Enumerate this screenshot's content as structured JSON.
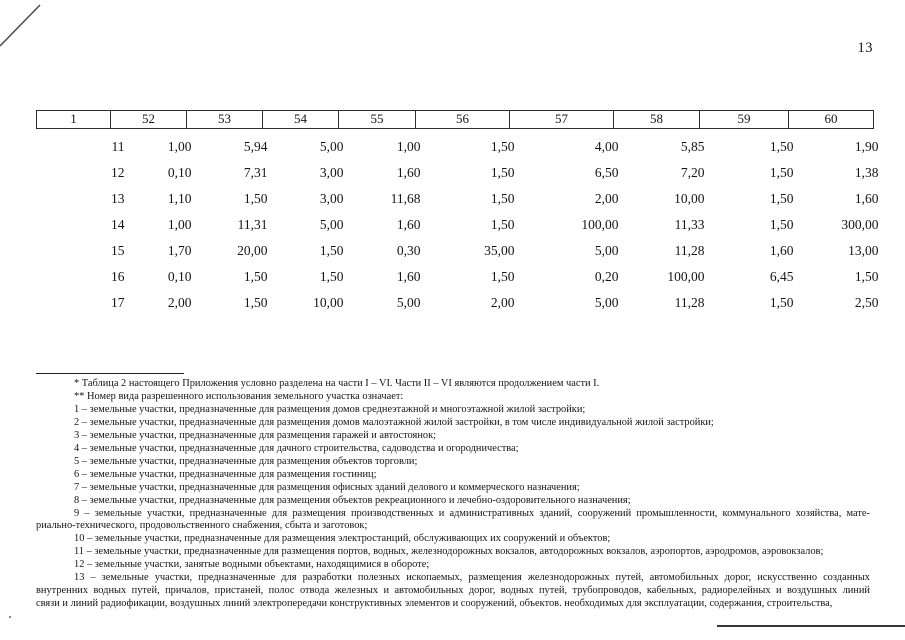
{
  "page": {
    "number": "13"
  },
  "table": {
    "headers": [
      "1",
      "52",
      "53",
      "54",
      "55",
      "56",
      "57",
      "58",
      "59",
      "60"
    ],
    "rows": [
      [
        "11",
        "1,00",
        "5,94",
        "5,00",
        "1,00",
        "1,50",
        "4,00",
        "5,85",
        "1,50",
        "1,90"
      ],
      [
        "12",
        "0,10",
        "7,31",
        "3,00",
        "1,60",
        "1,50",
        "6,50",
        "7,20",
        "1,50",
        "1,38"
      ],
      [
        "13",
        "1,10",
        "1,50",
        "3,00",
        "11,68",
        "1,50",
        "2,00",
        "10,00",
        "1,50",
        "1,60"
      ],
      [
        "14",
        "1,00",
        "11,31",
        "5,00",
        "1,60",
        "1,50",
        "100,00",
        "11,33",
        "1,50",
        "300,00"
      ],
      [
        "15",
        "1,70",
        "20,00",
        "1,50",
        "0,30",
        "35,00",
        "5,00",
        "11,28",
        "1,60",
        "13,00"
      ],
      [
        "16",
        "0,10",
        "1,50",
        "1,50",
        "1,60",
        "1,50",
        "0,20",
        "100,00",
        "6,45",
        "1,50"
      ],
      [
        "17",
        "2,00",
        "1,50",
        "10,00",
        "5,00",
        "2,00",
        "5,00",
        "11,28",
        "1,50",
        "2,50"
      ]
    ]
  },
  "footnotes": {
    "lines": [
      {
        "indent": true,
        "justify": false,
        "text": "* Таблица 2 настоящего Приложения условно разделена на части I – VI. Части II – VI являются продолжением части I."
      },
      {
        "indent": true,
        "justify": false,
        "text": "** Номер вида разрешенного использования земельного участка означает:"
      },
      {
        "indent": true,
        "justify": false,
        "text": "1 – земельные участки, предназначенные для размещения домов среднеэтажной и многоэтажной жилой застройки;"
      },
      {
        "indent": true,
        "justify": false,
        "text": "2 – земельные участки, предназначенные для размещения домов малоэтажной жилой застройки, в том числе индивидуальной жилой застройки;"
      },
      {
        "indent": true,
        "justify": false,
        "text": "3 – земельные участки, предназначенные для размещения гаражей и автостоянок;"
      },
      {
        "indent": true,
        "justify": false,
        "text": "4 – земельные участки, предназначенные для дачного строительства, садоводства и огородничества;"
      },
      {
        "indent": true,
        "justify": false,
        "text": "5 – земельные участки, предназначенные для размещения объектов торговли;"
      },
      {
        "indent": true,
        "justify": false,
        "text": "6 – земельные участки, предназначенные для размещения гостиниц;"
      },
      {
        "indent": true,
        "justify": false,
        "text": "7 – земельные участки, предназначенные для размещения офисных зданий делового и коммерческого назначения;"
      },
      {
        "indent": true,
        "justify": false,
        "text": "8 – земельные участки, предназначенные для размещения объектов рекреационного и лечебно-оздоровительного назначения;"
      },
      {
        "indent": true,
        "justify": true,
        "text": "9 – земельные участки, предназначенные для размещения производственных и административных зданий, сооружений промышленности, коммунального хозяйства, мате-"
      },
      {
        "indent": false,
        "justify": false,
        "text": "риально-технического, продовольственного снабжения, сбыта и заготовок;"
      },
      {
        "indent": true,
        "justify": false,
        "text": "10 – земельные участки, предназначенные для размещения электростанций, обслуживающих их сооружений и объектов;"
      },
      {
        "indent": true,
        "justify": false,
        "text": "11 – земельные участки, предназначенные для размещения портов, водных, железнодорожных вокзалов, автодорожных вокзалов, аэропортов, аэродромов, аэровокзалов;"
      },
      {
        "indent": true,
        "justify": false,
        "text": "12 – земельные участки, занятые водными объектами, находящимися в обороте;"
      },
      {
        "indent": true,
        "justify": true,
        "text": "13 – земельные участки, предназначенные для разработки полезных ископаемых, размещения железнодорожных путей, автомобильных дорог, искусственно созданных"
      },
      {
        "indent": false,
        "justify": true,
        "text": "внутренних водных путей, причалов, пристаней, полос отвода железных и автомобильных дорог, водных путей, трубопроводов, кабельных, радиорелейных и воздушных линий"
      },
      {
        "indent": false,
        "justify": false,
        "text": "связи и линий радиофикации, воздушных линий электропередачи конструктивных элементов и сооружений, объектов. необходимых для эксплуатации, содержания, строительства,"
      }
    ]
  }
}
